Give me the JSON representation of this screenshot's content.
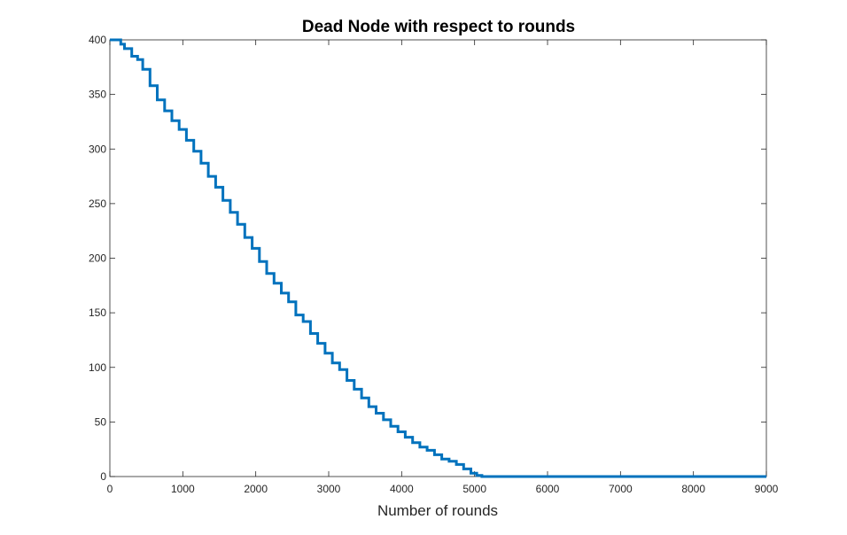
{
  "chart_data": {
    "type": "line",
    "title": "Dead Node with respect to rounds",
    "xlabel": "Number of rounds",
    "ylabel": "",
    "xlim": [
      0,
      9000
    ],
    "ylim": [
      0,
      400
    ],
    "xticks": [
      0,
      1000,
      2000,
      3000,
      4000,
      5000,
      6000,
      7000,
      8000,
      9000
    ],
    "yticks": [
      0,
      50,
      100,
      150,
      200,
      250,
      300,
      350,
      400
    ],
    "grid": false,
    "legend": "none",
    "line_color": "#0072BD",
    "series": [
      {
        "x": [
          0,
          100,
          150,
          200,
          300,
          380,
          450,
          550,
          650,
          750,
          850,
          950,
          1050,
          1150,
          1250,
          1350,
          1450,
          1550,
          1650,
          1750,
          1850,
          1950,
          2050,
          2150,
          2250,
          2350,
          2450,
          2550,
          2650,
          2750,
          2850,
          2950,
          3050,
          3150,
          3250,
          3350,
          3450,
          3550,
          3650,
          3750,
          3850,
          3950,
          4050,
          4150,
          4250,
          4350,
          4450,
          4550,
          4650,
          4750,
          4850,
          4950,
          5030,
          5100,
          6000,
          7000,
          8000,
          9000
        ],
        "y": [
          400,
          400,
          396,
          392,
          385,
          382,
          373,
          358,
          345,
          335,
          326,
          318,
          308,
          298,
          287,
          275,
          265,
          253,
          242,
          231,
          219,
          209,
          197,
          186,
          177,
          168,
          160,
          148,
          142,
          131,
          122,
          113,
          104,
          98,
          88,
          80,
          72,
          64,
          58,
          52,
          46,
          41,
          36,
          31,
          27,
          24,
          20,
          16,
          14,
          11,
          7,
          3,
          1,
          0,
          0,
          0,
          0,
          0
        ]
      }
    ]
  }
}
